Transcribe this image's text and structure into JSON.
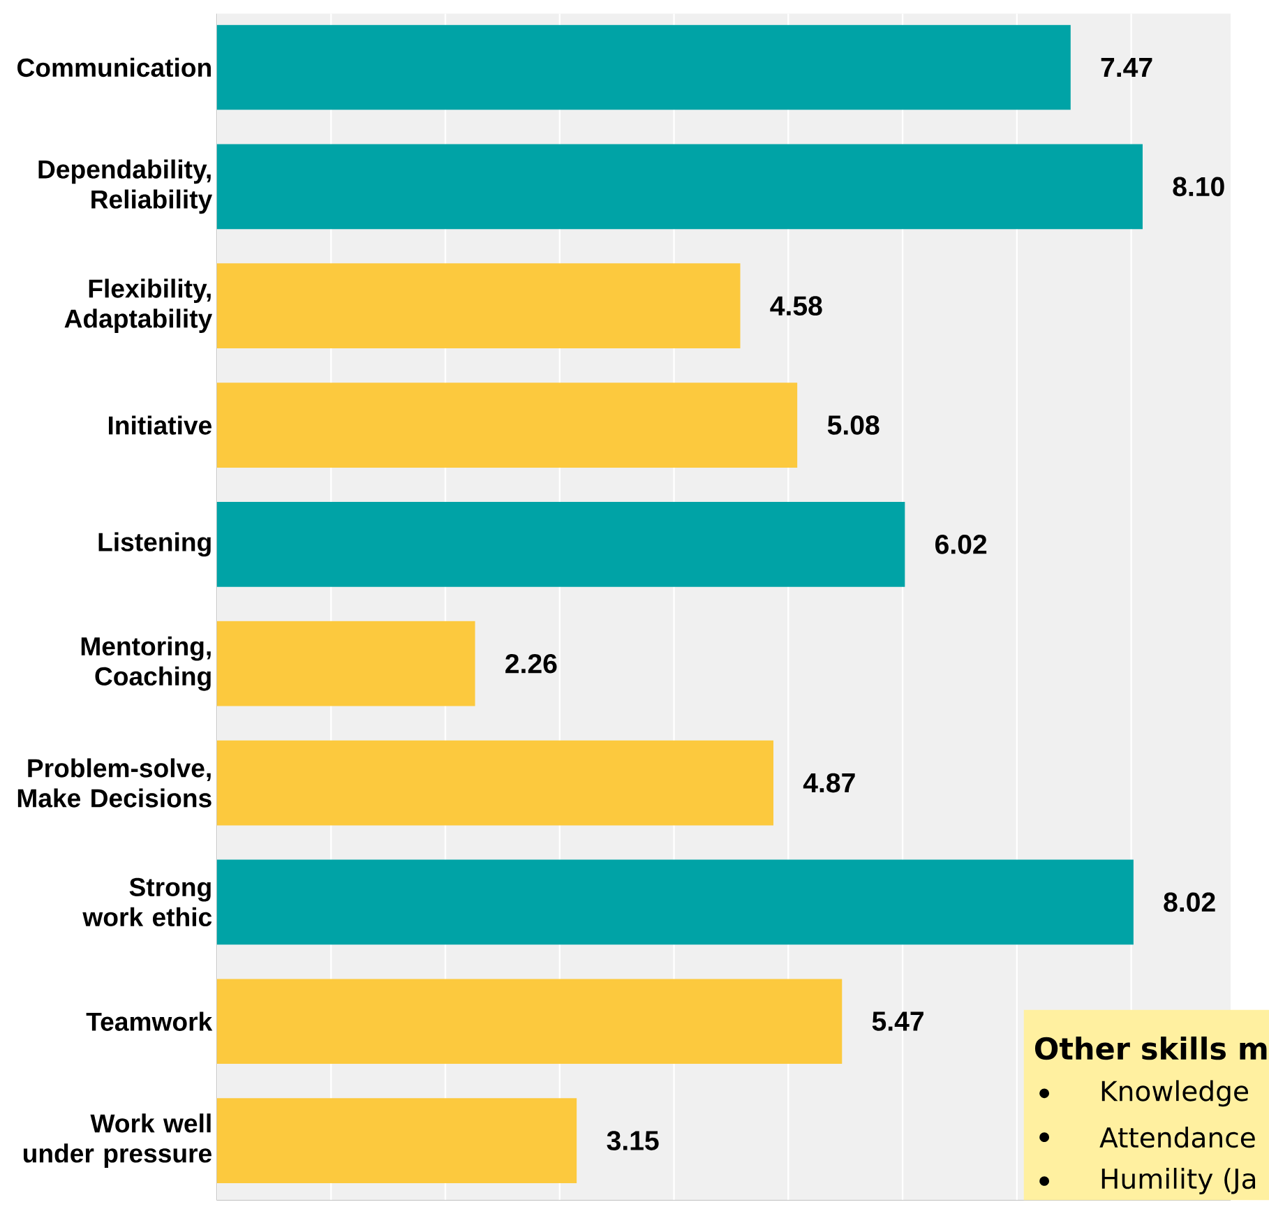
{
  "chart_data": {
    "type": "bar",
    "orientation": "horizontal",
    "categories": [
      "Communication",
      "Dependability, Reliability",
      "Flexibility, Adaptability",
      "Initiative",
      "Listening",
      "Mentoring, Coaching",
      "Problem-solve, Make Decisions",
      "Strong work ethic",
      "Teamwork",
      "Work well under pressure"
    ],
    "values": [
      7.47,
      8.1,
      4.58,
      5.08,
      6.02,
      2.26,
      4.87,
      8.02,
      5.47,
      3.15
    ],
    "value_labels": [
      "7.47",
      "8.10",
      "4.58",
      "5.08",
      "6.02",
      "2.26",
      "4.87",
      "8.02",
      "5.47",
      "3.15"
    ],
    "colors": [
      "#00a3a6",
      "#00a3a6",
      "#fcc93e",
      "#fcc93e",
      "#00a3a6",
      "#fcc93e",
      "#fcc93e",
      "#00a3a6",
      "#fcc93e",
      "#fcc93e"
    ],
    "xlim": [
      0,
      8.87
    ],
    "xticks": [
      {
        "value": 0,
        "label": null
      },
      {
        "value": 1,
        "label": null
      },
      {
        "value": 2,
        "label": null
      },
      {
        "value": 3,
        "label": null
      },
      {
        "value": 4,
        "label": null
      },
      {
        "value": 5,
        "label": null
      },
      {
        "value": 6,
        "label": null
      },
      {
        "value": 7,
        "label": null
      },
      {
        "value": 8,
        "label": null
      }
    ],
    "grid": "x",
    "tick_labels": "y",
    "annotations": [
      "Other skills m",
      "Knowledge",
      "Attendance",
      "Humility (Ja"
    ]
  }
}
